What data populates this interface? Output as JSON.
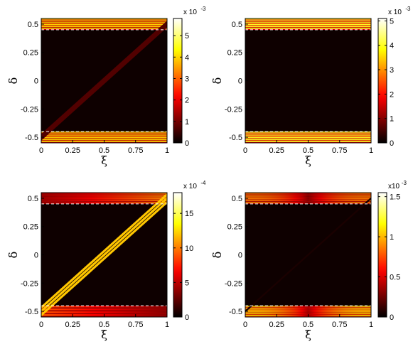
{
  "chart_data": [
    {
      "type": "heatmap",
      "panel": "top-left",
      "xlabel": "ξ",
      "ylabel": "δ",
      "xlim": [
        0,
        1
      ],
      "ylim": [
        -0.55,
        0.55
      ],
      "x_ticks": [
        "0",
        "0.25",
        "0.5",
        "0.75",
        "1"
      ],
      "y_ticks": [
        "0.5",
        "0.25",
        "0",
        "-0.25",
        "-0.5"
      ],
      "colorbar": {
        "ticks": [
          "5",
          "4",
          "3",
          "2",
          "1",
          "0"
        ],
        "tick_values": [
          5,
          4,
          3,
          2,
          1,
          0
        ],
        "max": 5.8,
        "exponent": "x 10",
        "exponent_power": "-3"
      },
      "dashed_lines_delta": [
        0.45,
        -0.45
      ],
      "stripe_bands": [
        {
          "from": 0.45,
          "to": 0.55,
          "peak": 4.0,
          "stripes": 6,
          "modulation": "none"
        },
        {
          "from": -0.55,
          "to": -0.45,
          "peak": 4.0,
          "stripes": 6,
          "modulation": "none"
        }
      ],
      "diagonal_band": {
        "from": [
          0,
          -0.5
        ],
        "to": [
          1,
          0.5
        ],
        "halfwidth": 0.03,
        "peak": 0.7,
        "stripes": 1
      }
    },
    {
      "type": "heatmap",
      "panel": "top-right",
      "xlabel": "ξ",
      "ylabel": "δ",
      "xlim": [
        0,
        1
      ],
      "ylim": [
        -0.55,
        0.55
      ],
      "x_ticks": [
        "0",
        "0.25",
        "0.5",
        "0.75",
        "1"
      ],
      "y_ticks": [
        "0.5",
        "0.25",
        "0",
        "-0.25",
        "-0.5"
      ],
      "colorbar": {
        "ticks": [
          "5",
          "4",
          "3",
          "2",
          "1",
          "0"
        ],
        "tick_values": [
          5,
          4,
          3,
          2,
          1,
          0
        ],
        "max": 5.1,
        "exponent": "x 10",
        "exponent_power": "-3"
      },
      "dashed_lines_delta": [
        0.45,
        -0.45
      ],
      "stripe_bands": [
        {
          "from": 0.45,
          "to": 0.55,
          "peak": 4.0,
          "stripes": 6,
          "modulation": "none"
        },
        {
          "from": -0.55,
          "to": -0.45,
          "peak": 4.0,
          "stripes": 6,
          "modulation": "none"
        }
      ]
    },
    {
      "type": "heatmap",
      "panel": "bottom-left",
      "xlabel": "ξ",
      "ylabel": "δ",
      "xlim": [
        0,
        1
      ],
      "ylim": [
        -0.55,
        0.55
      ],
      "x_ticks": [
        "0",
        "0.25",
        "0.5",
        "0.75",
        "1"
      ],
      "y_ticks": [
        "0.5",
        "0.25",
        "0",
        "-0.25",
        "-0.5"
      ],
      "colorbar": {
        "ticks": [
          "15",
          "10",
          "5",
          "0"
        ],
        "tick_values": [
          15,
          10,
          5,
          0
        ],
        "max": 18,
        "exponent": "x 10",
        "exponent_power": "-4"
      },
      "dashed_lines_delta": [
        0.45,
        -0.45
      ],
      "stripe_bands": [
        {
          "from": 0.45,
          "to": 0.55,
          "peak": 11,
          "stripes": 6,
          "modulation": "ramp-right"
        },
        {
          "from": -0.55,
          "to": -0.45,
          "peak": 9,
          "stripes": 4,
          "modulation": "ramp-left"
        }
      ],
      "diagonal_band": {
        "from": [
          0,
          -0.5
        ],
        "to": [
          1,
          0.5
        ],
        "halfwidth": 0.05,
        "peak": 12,
        "stripes": 3
      }
    },
    {
      "type": "heatmap",
      "panel": "bottom-right",
      "xlabel": "ξ",
      "ylabel": "δ",
      "xlim": [
        0,
        1
      ],
      "ylim": [
        -0.55,
        0.55
      ],
      "x_ticks": [
        "0",
        "0.25",
        "0.5",
        "0.75",
        "1"
      ],
      "y_ticks": [
        "0.5",
        "0.25",
        "0",
        "-0.25",
        "-0.5"
      ],
      "colorbar": {
        "ticks": [
          "1.5",
          "1",
          "0.5",
          "0"
        ],
        "tick_values": [
          1.5,
          1,
          0.5,
          0
        ],
        "max": 1.55,
        "exponent": "x10",
        "exponent_power": "-3"
      },
      "dashed_lines_delta": [
        0.45,
        -0.45
      ],
      "stripe_bands": [
        {
          "from": 0.45,
          "to": 0.55,
          "peak": 0.9,
          "stripes": 6,
          "modulation": "dip-center"
        },
        {
          "from": -0.55,
          "to": -0.45,
          "peak": 1.1,
          "stripes": 6,
          "modulation": "dip-center"
        }
      ],
      "diagonal_band": {
        "from": [
          0,
          -0.5
        ],
        "to": [
          1,
          0.5
        ],
        "halfwidth": 0.01,
        "peak": 0.06,
        "stripes": 1
      }
    }
  ]
}
